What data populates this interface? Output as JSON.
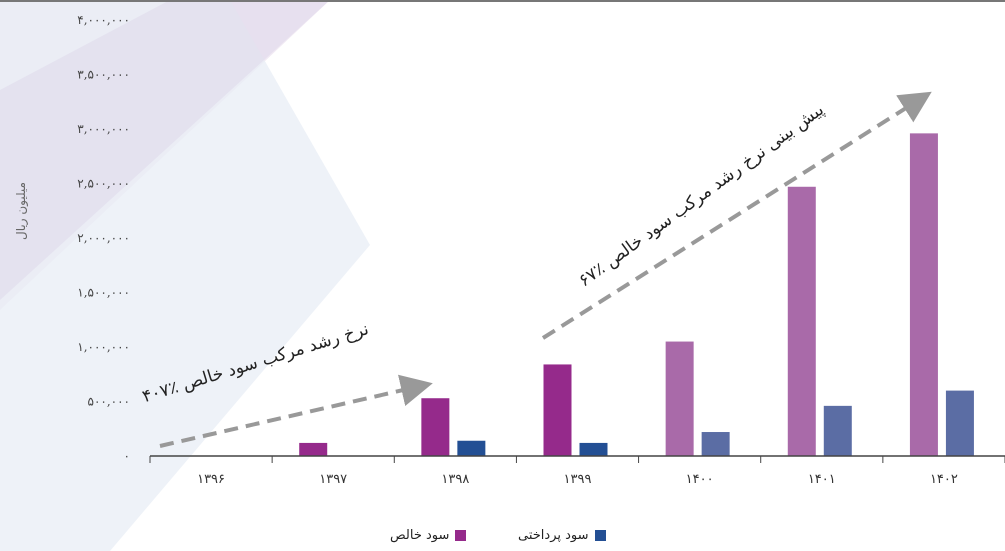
{
  "chart_data": {
    "type": "bar",
    "ylabel": "میلیون ریال",
    "ylim": [
      0,
      4000000
    ],
    "yticks": [
      {
        "v": 0,
        "label": "۰"
      },
      {
        "v": 500000,
        "label": "۵۰۰,۰۰۰"
      },
      {
        "v": 1000000,
        "label": "۱,۰۰۰,۰۰۰"
      },
      {
        "v": 1500000,
        "label": "۱,۵۰۰,۰۰۰"
      },
      {
        "v": 2000000,
        "label": "۲,۰۰۰,۰۰۰"
      },
      {
        "v": 2500000,
        "label": "۲,۵۰۰,۰۰۰"
      },
      {
        "v": 3000000,
        "label": "۳,۰۰۰,۰۰۰"
      },
      {
        "v": 3500000,
        "label": "۳,۵۰۰,۰۰۰"
      },
      {
        "v": 4000000,
        "label": "۴,۰۰۰,۰۰۰"
      }
    ],
    "categories": [
      "۱۳۹۶",
      "۱۳۹۷",
      "۱۳۹۸",
      "۱۳۹۹",
      "۱۴۰۰",
      "۱۴۰۱",
      "۱۴۰۲"
    ],
    "series": [
      {
        "name": "سود خالص",
        "values": [
          0,
          120000,
          530000,
          840000,
          1050000,
          2470000,
          2960000
        ]
      },
      {
        "name": "سود پرداختی",
        "values": [
          0,
          0,
          140000,
          120000,
          220000,
          460000,
          600000
        ]
      }
    ],
    "colors": {
      "net_actual": "#952a8b",
      "net_forecast": "#a96aa9",
      "paid_actual": "#234f94",
      "paid_forecast": "#5b6da4",
      "arrow": "#999999"
    },
    "forecast_from_index": 4,
    "annotations": [
      "نرخ رشد مرکب سود خالص ٪۴۰۷",
      "پیش بینی نرخ رشد مرکب سود خالص ٪۶۷"
    ]
  }
}
